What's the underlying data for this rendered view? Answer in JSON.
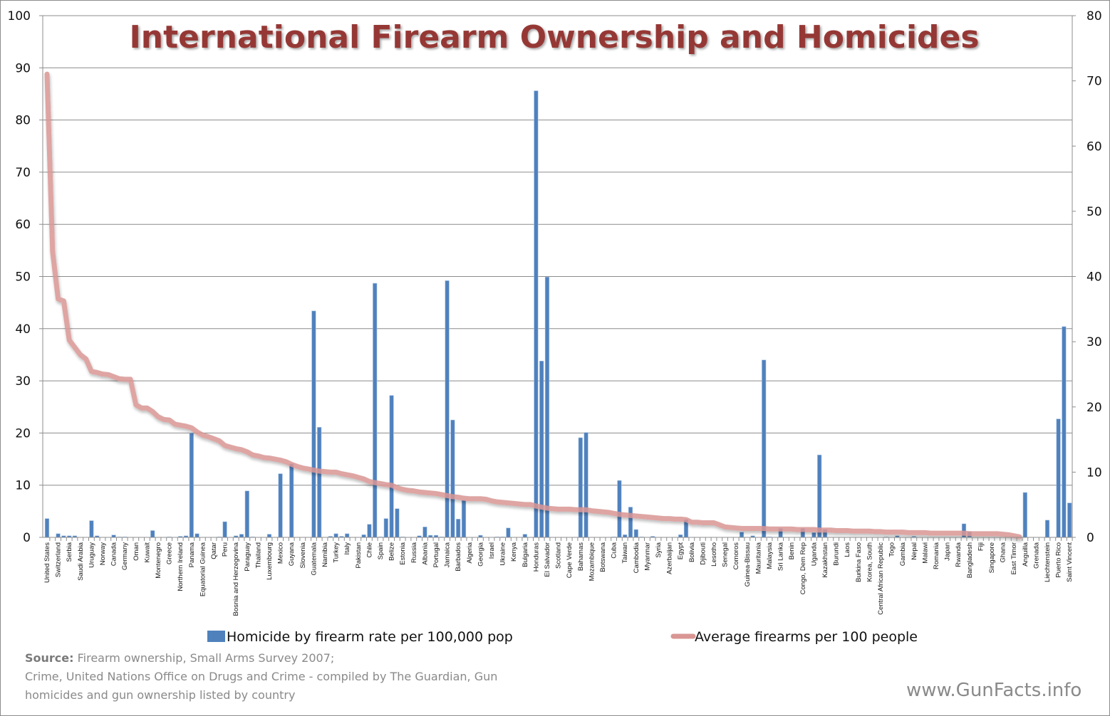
{
  "chart_data": {
    "type": "bar+line",
    "title": "International Firearm Ownership and Homicides",
    "tick_label_every": 2,
    "tick_labels": [
      "United States",
      "Switzerland",
      "Serbia",
      "Saudi Arabia",
      "Uruguay",
      "Norway",
      "Canada",
      "Germany",
      "Oman",
      "Kuwait",
      "Montenegro",
      "Greece",
      "Northern Ireland",
      "Panama",
      "Equatorial Guinea",
      "Qatar",
      "Peru",
      "Bosnia and Herzegovina",
      "Paraguay",
      "Thailand",
      "Luxembourg",
      "Mexico",
      "Guyana",
      "Slovenia",
      "Guatemala",
      "Namibia",
      "Turkey",
      "Italy",
      "Pakistan",
      "Chile",
      "Spain",
      "Belize",
      "Estonia",
      "Russia",
      "Albania",
      "Portugal",
      "Jamaica",
      "Barbados",
      "Algeria",
      "Georgia",
      "Israel",
      "Ukraine",
      "Kenya",
      "Bulgaria",
      "Honduras",
      "El Salvador",
      "Scotland",
      "Cape Verde",
      "Bahamas",
      "Mozambique",
      "Botswana",
      "Cuba",
      "Taiwan",
      "Cambodia",
      "Myanmar",
      "Syria",
      "Azerbaijan",
      "Egypt",
      "Bolivia",
      "Djibouti",
      "Lesotho",
      "Senegal",
      "Comoros",
      "Guinea-Bissau",
      "Mauritania",
      "Malaysia",
      "Sri Lanka",
      "Benin",
      "Congo, Dem Rep",
      "Uganda",
      "Kazakhstan",
      "Burundi",
      "Laos",
      "Burkina Faso",
      "Korea, South",
      "Central African Republic",
      "Togo",
      "Gambia",
      "Nepal",
      "Malawi",
      "Romania",
      "Japan",
      "Rwanda",
      "Bangladesh",
      "Fiji",
      "Singapore",
      "Ghana",
      "East Timor",
      "Anguilla",
      "Grenada",
      "Liechtenstein",
      "Puerto Rico",
      "Saint Vincent"
    ],
    "left_axis": {
      "min": 0,
      "max": 100,
      "step": 10
    },
    "right_axis": {
      "min": 0,
      "max": 80,
      "step": 10
    },
    "grid": true,
    "legend_position": "bottom",
    "series": [
      {
        "name": "Homicide by firearm rate per 100,000 pop",
        "type": "bar",
        "color": "#4f81bd",
        "values": [
          3.6,
          0,
          0.7,
          0.3,
          0.3,
          0.3,
          0,
          0,
          3.2,
          0.3,
          0,
          0,
          0.45,
          0.1,
          0.1,
          0,
          0,
          0,
          0,
          1.3,
          0,
          0,
          0.1,
          0,
          0.2,
          0.3,
          20.0,
          0.7,
          0,
          0,
          0,
          0.1,
          3.0,
          0,
          0.3,
          0.6,
          8.9,
          0.1,
          0,
          0,
          0.6,
          0,
          12.2,
          0,
          14.1,
          0,
          0,
          0,
          43.4,
          21.1,
          0,
          0.2,
          0.7,
          0.2,
          0.7,
          0,
          0,
          0.5,
          2.5,
          48.7,
          0.1,
          3.6,
          27.2,
          5.5,
          0.1,
          0,
          0,
          0.3,
          2.0,
          0.4,
          0.4,
          0.1,
          49.2,
          22.5,
          3.5,
          7.1,
          0,
          0,
          0.4,
          0,
          0,
          0.1,
          0.1,
          1.8,
          0,
          0,
          0.6,
          0,
          85.6,
          33.8,
          49.9,
          0,
          0,
          0,
          0,
          0,
          19.1,
          20.1,
          0,
          0,
          0,
          0,
          0.1,
          10.9,
          0.5,
          5.8,
          1.5,
          0.1,
          0,
          0.2,
          0,
          0,
          0,
          0,
          0.5,
          3.4,
          0,
          0,
          0,
          0,
          0,
          0,
          0,
          0,
          0,
          1.0,
          0,
          0.3,
          0,
          34.0,
          0.1,
          0,
          1.7,
          0,
          0,
          0,
          1.7,
          0,
          0.9,
          15.8,
          1.5,
          0,
          0,
          0,
          0,
          0,
          0,
          0,
          0,
          0,
          0,
          0.1,
          0,
          0.3,
          0,
          0,
          0.2,
          0,
          0,
          0,
          0,
          0,
          0,
          0,
          0,
          2.6,
          1.1,
          0,
          0,
          0,
          0,
          0,
          0,
          0,
          0,
          0,
          8.6,
          0,
          0,
          0,
          3.3,
          0,
          22.7,
          40.4,
          6.6
        ]
      },
      {
        "name": "Average firearms per 100 people",
        "type": "line",
        "color": "#d99694",
        "values": [
          88.8,
          54.8,
          45.7,
          45.3,
          37.8,
          36.4,
          35.0,
          34.2,
          31.8,
          31.6,
          31.3,
          31.2,
          30.8,
          30.4,
          30.3,
          30.3,
          25.4,
          24.8,
          24.8,
          24.1,
          23.1,
          22.6,
          22.5,
          21.7,
          21.5,
          21.3,
          21.0,
          20.2,
          19.6,
          19.3,
          18.9,
          18.5,
          17.6,
          17.3,
          17.0,
          16.8,
          16.4,
          15.8,
          15.6,
          15.3,
          15.2,
          15.0,
          14.8,
          14.5,
          14.0,
          13.6,
          13.3,
          13.1,
          12.9,
          12.7,
          12.6,
          12.5,
          12.5,
          12.2,
          12.0,
          11.8,
          11.5,
          11.2,
          10.7,
          10.5,
          10.3,
          10.1,
          10.0,
          9.5,
          9.2,
          9.0,
          8.9,
          8.7,
          8.6,
          8.5,
          8.4,
          8.2,
          8.0,
          7.8,
          7.7,
          7.5,
          7.4,
          7.4,
          7.4,
          7.3,
          7.0,
          6.8,
          6.7,
          6.6,
          6.5,
          6.4,
          6.3,
          6.3,
          6.0,
          5.8,
          5.6,
          5.5,
          5.4,
          5.4,
          5.4,
          5.3,
          5.3,
          5.3,
          5.1,
          5.0,
          4.9,
          4.8,
          4.6,
          4.4,
          4.3,
          4.2,
          4.1,
          4.0,
          3.9,
          3.8,
          3.7,
          3.6,
          3.6,
          3.5,
          3.5,
          3.4,
          2.9,
          2.9,
          2.8,
          2.8,
          2.8,
          2.4,
          2.0,
          1.9,
          1.8,
          1.7,
          1.7,
          1.7,
          1.7,
          1.7,
          1.6,
          1.6,
          1.6,
          1.6,
          1.6,
          1.5,
          1.5,
          1.5,
          1.5,
          1.4,
          1.4,
          1.4,
          1.3,
          1.3,
          1.3,
          1.2,
          1.2,
          1.2,
          1.2,
          1.1,
          1.1,
          1.0,
          1.0,
          1.0,
          1.0,
          0.9,
          0.9,
          0.9,
          0.9,
          0.8,
          0.8,
          0.8,
          0.8,
          0.8,
          0.8,
          0.8,
          0.7,
          0.7,
          0.7,
          0.7,
          0.7,
          0.7,
          0.6,
          0.5,
          0.3,
          0.1,
          null,
          null,
          null,
          null,
          null,
          null,
          null,
          null,
          null
        ]
      }
    ]
  },
  "legend": {
    "bar_label": "Homicide by firearm rate per 100,000 pop",
    "line_label": "Average firearms per 100 people"
  },
  "source": {
    "label": "Source:",
    "line1": " Firearm ownership, Small Arms Survey 2007;",
    "line2": "Crime, United Nations Office on Drugs and Crime - compiled by The Guardian, Gun",
    "line3": "homicides and gun ownership listed by country"
  },
  "watermark": "www.GunFacts.info"
}
